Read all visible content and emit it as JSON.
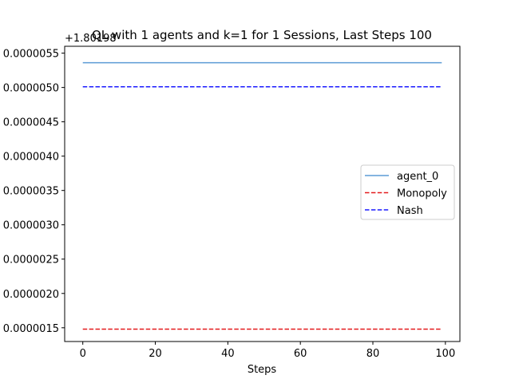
{
  "chart_data": {
    "type": "line",
    "title": "QL with 1 agents and k=1 for 1 Sessions, Last Steps 100",
    "xlabel": "Steps",
    "ylabel": "",
    "offset_text": "+1.80198",
    "xlim": [
      -5,
      104
    ],
    "ylim": [
      1.3e-06,
      5.6e-06
    ],
    "x_ticks": [
      0,
      20,
      40,
      60,
      80,
      100
    ],
    "x_tick_labels": [
      "0",
      "20",
      "40",
      "60",
      "80",
      "100"
    ],
    "y_ticks": [
      1.5e-06,
      2e-06,
      2.5e-06,
      3e-06,
      3.5e-06,
      4e-06,
      4.5e-06,
      5e-06,
      5.5e-06
    ],
    "y_tick_labels": [
      "0.0000015",
      "0.0000020",
      "0.0000025",
      "0.0000030",
      "0.0000035",
      "0.0000040",
      "0.0000045",
      "0.0000050",
      "0.0000055"
    ],
    "grid": false,
    "legend_position": "center-right",
    "series": [
      {
        "name": "agent_0",
        "color": "#5b9bd5",
        "style": "solid",
        "x": [
          0,
          99
        ],
        "y": [
          5.36e-06,
          5.36e-06
        ]
      },
      {
        "name": "Monopoly",
        "color": "#e31a1c",
        "style": "dashed",
        "x": [
          0,
          99
        ],
        "y": [
          1.48e-06,
          1.48e-06
        ]
      },
      {
        "name": "Nash",
        "color": "#1a1aff",
        "style": "dashed",
        "x": [
          0,
          99
        ],
        "y": [
          5.01e-06,
          5.01e-06
        ]
      }
    ]
  }
}
